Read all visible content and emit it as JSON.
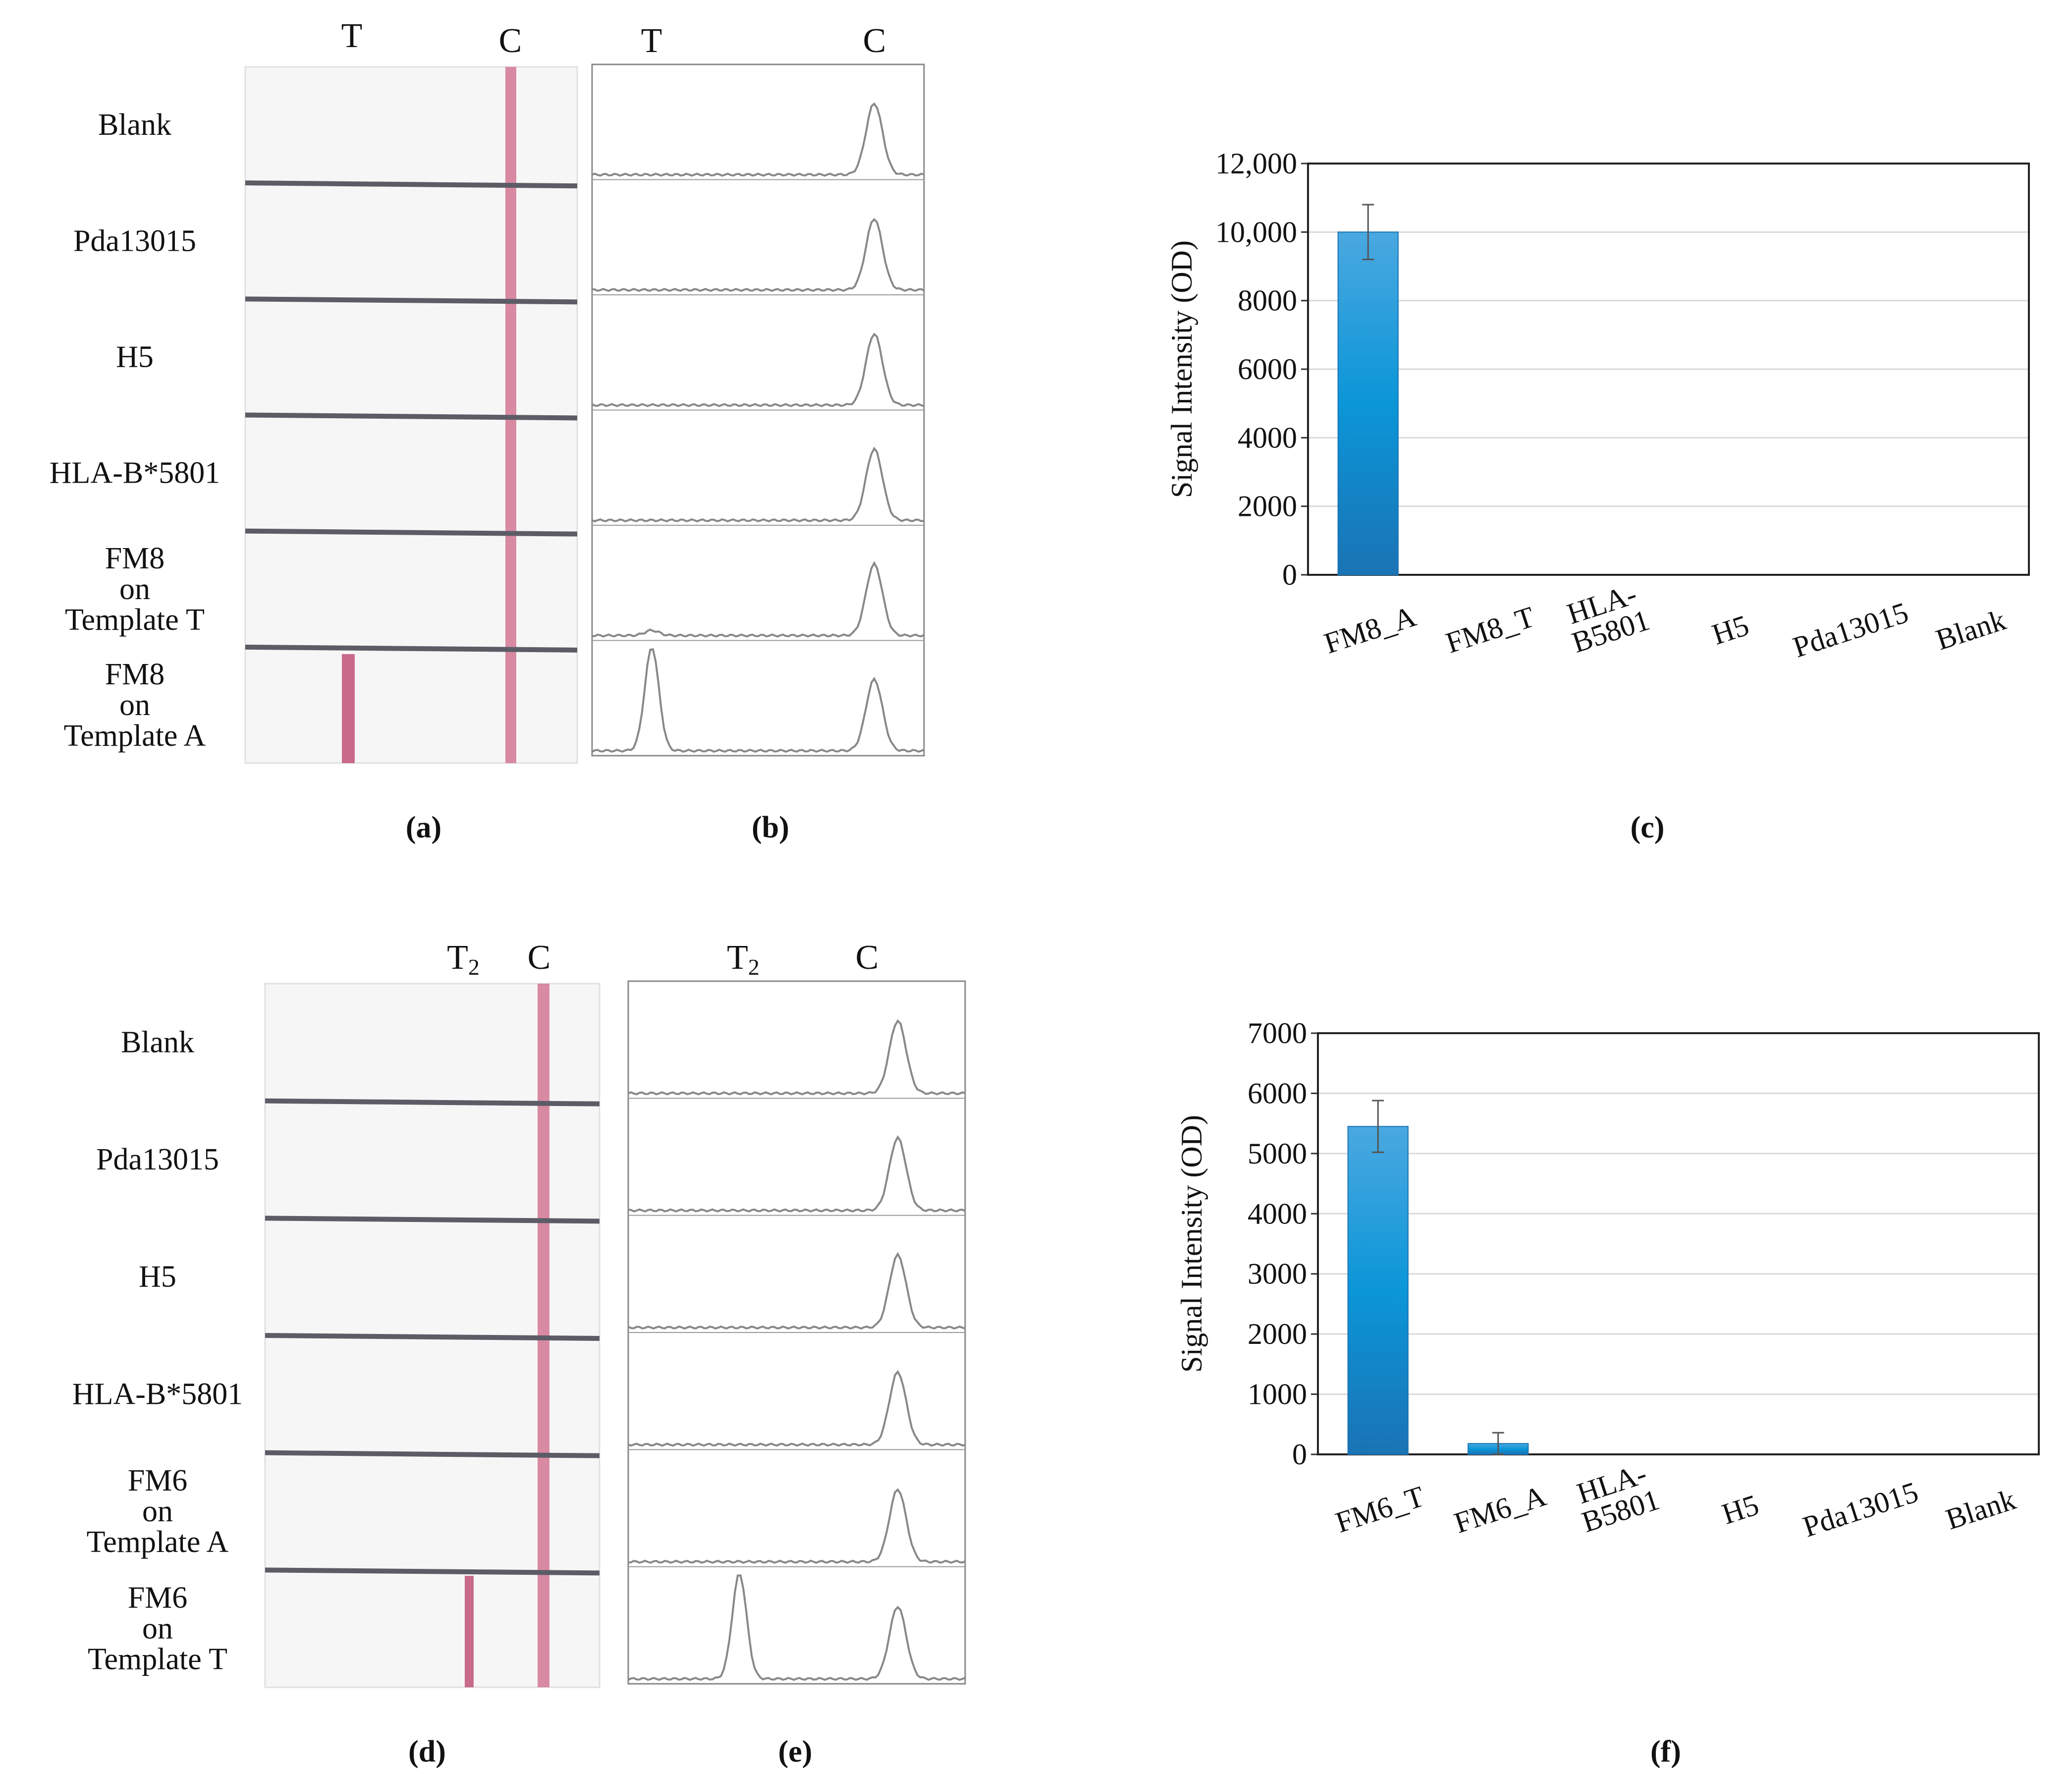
{
  "panel_labels": [
    "(a)",
    "(b)",
    "(c)",
    "(d)",
    "(e)",
    "(f)"
  ],
  "top": {
    "strip_header": {
      "t": "T",
      "c": "C"
    },
    "trace_header": {
      "t": "T",
      "c": "C"
    },
    "rows": [
      {
        "lines": [
          "Blank"
        ],
        "test_line": false,
        "test_peak": 0
      },
      {
        "lines": [
          "Pda13015"
        ],
        "test_line": false,
        "test_peak": 0
      },
      {
        "lines": [
          "H5"
        ],
        "test_line": false,
        "test_peak": 0
      },
      {
        "lines": [
          "HLA-B*5801"
        ],
        "test_line": false,
        "test_peak": 0
      },
      {
        "lines": [
          "FM8",
          "on",
          "Template T"
        ],
        "test_line": false,
        "test_peak": 0.05
      },
      {
        "lines": [
          "FM8",
          "on",
          "Template A"
        ],
        "test_line": true,
        "test_peak": 1.0
      }
    ]
  },
  "bottom": {
    "strip_header": {
      "t": "T",
      "t_sub": "2",
      "c": "C"
    },
    "trace_header": {
      "t": "T",
      "t_sub": "2",
      "c": "C"
    },
    "rows": [
      {
        "lines": [
          "Blank"
        ],
        "test_line": false,
        "test_peak": 0
      },
      {
        "lines": [
          "Pda13015"
        ],
        "test_line": false,
        "test_peak": 0
      },
      {
        "lines": [
          "H5"
        ],
        "test_line": false,
        "test_peak": 0
      },
      {
        "lines": [
          "HLA-B*5801"
        ],
        "test_line": false,
        "test_peak": 0
      },
      {
        "lines": [
          "FM6",
          "on",
          "Template A"
        ],
        "test_line": false,
        "test_peak": 0
      },
      {
        "lines": [
          "FM6",
          "on",
          "Template T"
        ],
        "test_line": true,
        "test_peak": 1.0
      }
    ]
  },
  "colors": {
    "bar_top": "#4aa8e0",
    "bar_mid": "#0b96d8",
    "bar_bottom": "#1a73b4",
    "strip_line": "#d98aa3",
    "divider": "#5c5c66",
    "trace": "#888888"
  },
  "chart_data": [
    {
      "type": "bar",
      "ylabel": "Signal Intensity (OD)",
      "categories": [
        "FM8_A",
        "FM8_T",
        "HLA-\nB5801",
        "H5",
        "Pda13015",
        "Blank"
      ],
      "values": [
        10000,
        0,
        0,
        0,
        0,
        0
      ],
      "errors": [
        800,
        0,
        0,
        0,
        0,
        0
      ],
      "ylim": [
        0,
        12000
      ],
      "yticks": [
        "0",
        "2000",
        "4000",
        "6000",
        "8000",
        "10,000",
        "12,000"
      ],
      "grid": true
    },
    {
      "type": "bar",
      "ylabel": "Signal Intensity (OD)",
      "categories": [
        "FM6_T",
        "FM6_A",
        "HLA-\nB5801",
        "H5",
        "Pda13015",
        "Blank"
      ],
      "values": [
        5450,
        180,
        0,
        0,
        0,
        0
      ],
      "errors": [
        430,
        180,
        0,
        0,
        0,
        0
      ],
      "ylim": [
        0,
        7000
      ],
      "yticks": [
        "0",
        "1000",
        "2000",
        "3000",
        "4000",
        "5000",
        "6000",
        "7000"
      ],
      "grid": true
    }
  ]
}
